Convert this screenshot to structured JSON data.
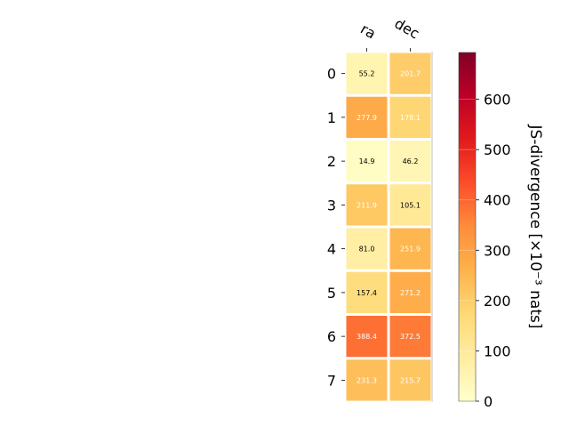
{
  "chart_data": {
    "type": "heatmap",
    "columns": [
      "ra",
      "dec"
    ],
    "rows": [
      "0",
      "1",
      "2",
      "3",
      "4",
      "5",
      "6",
      "7"
    ],
    "values": [
      [
        55.2,
        201.7
      ],
      [
        277.9,
        178.1
      ],
      [
        14.9,
        46.2
      ],
      [
        211.9,
        105.1
      ],
      [
        81.0,
        251.9
      ],
      [
        157.4,
        271.2
      ],
      [
        388.4,
        372.5
      ],
      [
        231.3,
        215.7
      ]
    ],
    "value_labels": [
      [
        "55.2",
        "201.7"
      ],
      [
        "277.9",
        "178.1"
      ],
      [
        "14.9",
        "46.2"
      ],
      [
        "211.9",
        "105.1"
      ],
      [
        "81.0",
        "251.9"
      ],
      [
        "157.4",
        "271.2"
      ],
      [
        "388.4",
        "372.5"
      ],
      [
        "231.3",
        "215.7"
      ]
    ],
    "colorbar": {
      "label": "JS-divergence [×10⁻³ nats]",
      "range": [
        0,
        693
      ],
      "ticks": [
        0,
        100,
        200,
        300,
        400,
        500,
        600
      ],
      "tick_labels": [
        "0",
        "100",
        "200",
        "300",
        "400",
        "500",
        "600"
      ],
      "colormap": "YlOrRd",
      "colormap_stops": [
        "#ffffcc",
        "#ffeda0",
        "#fed976",
        "#feb24c",
        "#fd8d3c",
        "#fc4e2a",
        "#e31a1c",
        "#bd0026",
        "#800026"
      ]
    },
    "cell_border_color": "#ffffff",
    "legend": "right"
  }
}
